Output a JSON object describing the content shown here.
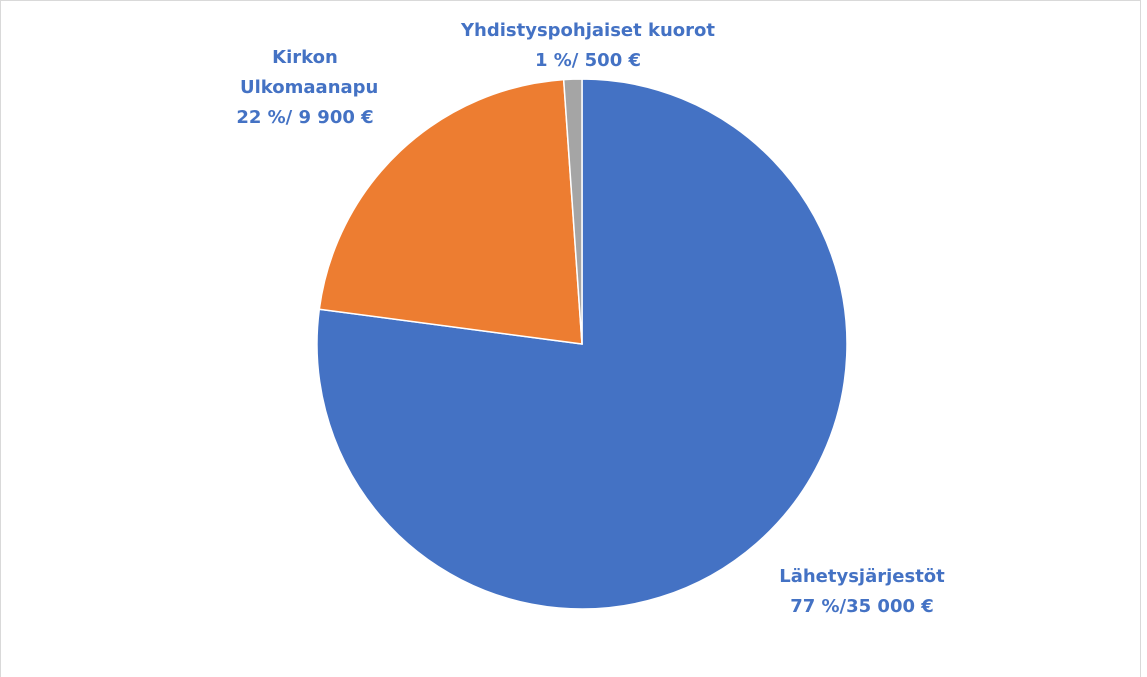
{
  "chart_data": {
    "type": "pie",
    "categories": [
      "Lähetysjärjestöt",
      "Kirkon Ulkomaanapu",
      "Yhdistyspohjaiset kuorot"
    ],
    "values": [
      35000,
      9900,
      500
    ],
    "value_labels": [
      "77 %/35 000 €",
      "22 %/ 9 900 €",
      "1 %/ 500 €"
    ],
    "colors": [
      "#4472c4",
      "#ed7d31",
      "#a5a5a5"
    ]
  }
}
